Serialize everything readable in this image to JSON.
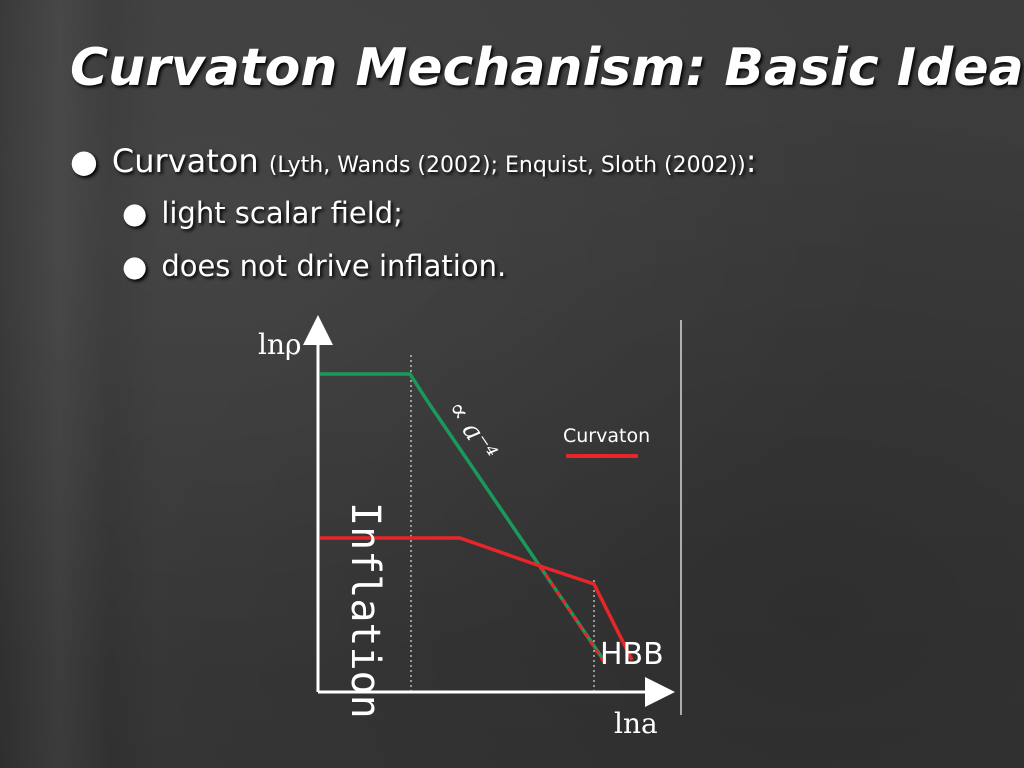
{
  "slide": {
    "title": "Curvaton Mechanism: Basic Idea",
    "bullet": {
      "marker": "●",
      "term": "Curvaton",
      "references": "(Lyth, Wands (2002); Enquist, Sloth (2002))",
      "suffix": ":",
      "subitems": [
        "light scalar field;",
        "does not drive inflation."
      ]
    }
  },
  "diagram": {
    "y_axis_label": "lnρ",
    "x_axis_label": "lna",
    "slope_label": "∝ a⁻⁴",
    "legend_label": "Curvaton",
    "region_inflation": "Inflation",
    "region_hbb": "HBB",
    "colors": {
      "inflaton": "#1a9a5a",
      "curvaton": "#e8262a",
      "axes": "#ffffff"
    }
  }
}
